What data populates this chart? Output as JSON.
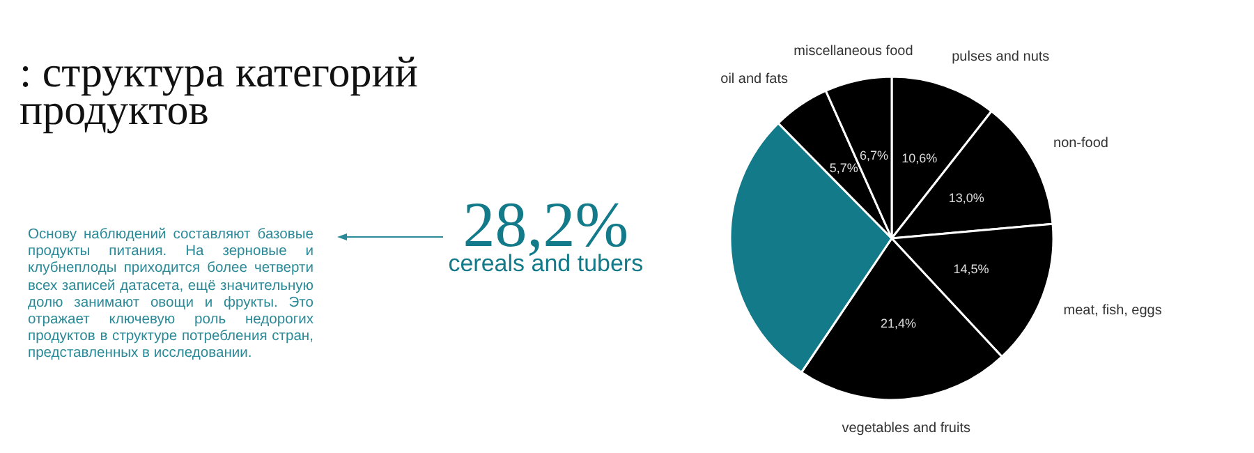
{
  "chart_data": {
    "type": "pie",
    "title": ": структура категорий продуктов",
    "categories": [
      "pulses and nuts",
      "non-food",
      "meat, fish, eggs",
      "vegetables and fruits",
      "cereals and tubers",
      "oil and fats",
      "miscellaneous food"
    ],
    "values": [
      10.6,
      13.0,
      14.5,
      21.4,
      28.2,
      5.7,
      6.7
    ],
    "value_labels": [
      "10,6%",
      "13,0%",
      "14,5%",
      "21,4%",
      "28,2%",
      "5,7%",
      "6,7%"
    ],
    "colors": [
      "#000000",
      "#000000",
      "#000000",
      "#000000",
      "#137a8a",
      "#000000",
      "#000000"
    ],
    "annotations": [
      "Основу наблюдений составляют базовые продукты питания. На зерновые и клубнеплоды приходится более четверти всех записей датасета, ещё значительную долю занимают овощи и фрукты. Это отражает ключевую роль недорогих продуктов в структуре потребления стран, представленных в исследовании."
    ],
    "legend": false
  }
}
